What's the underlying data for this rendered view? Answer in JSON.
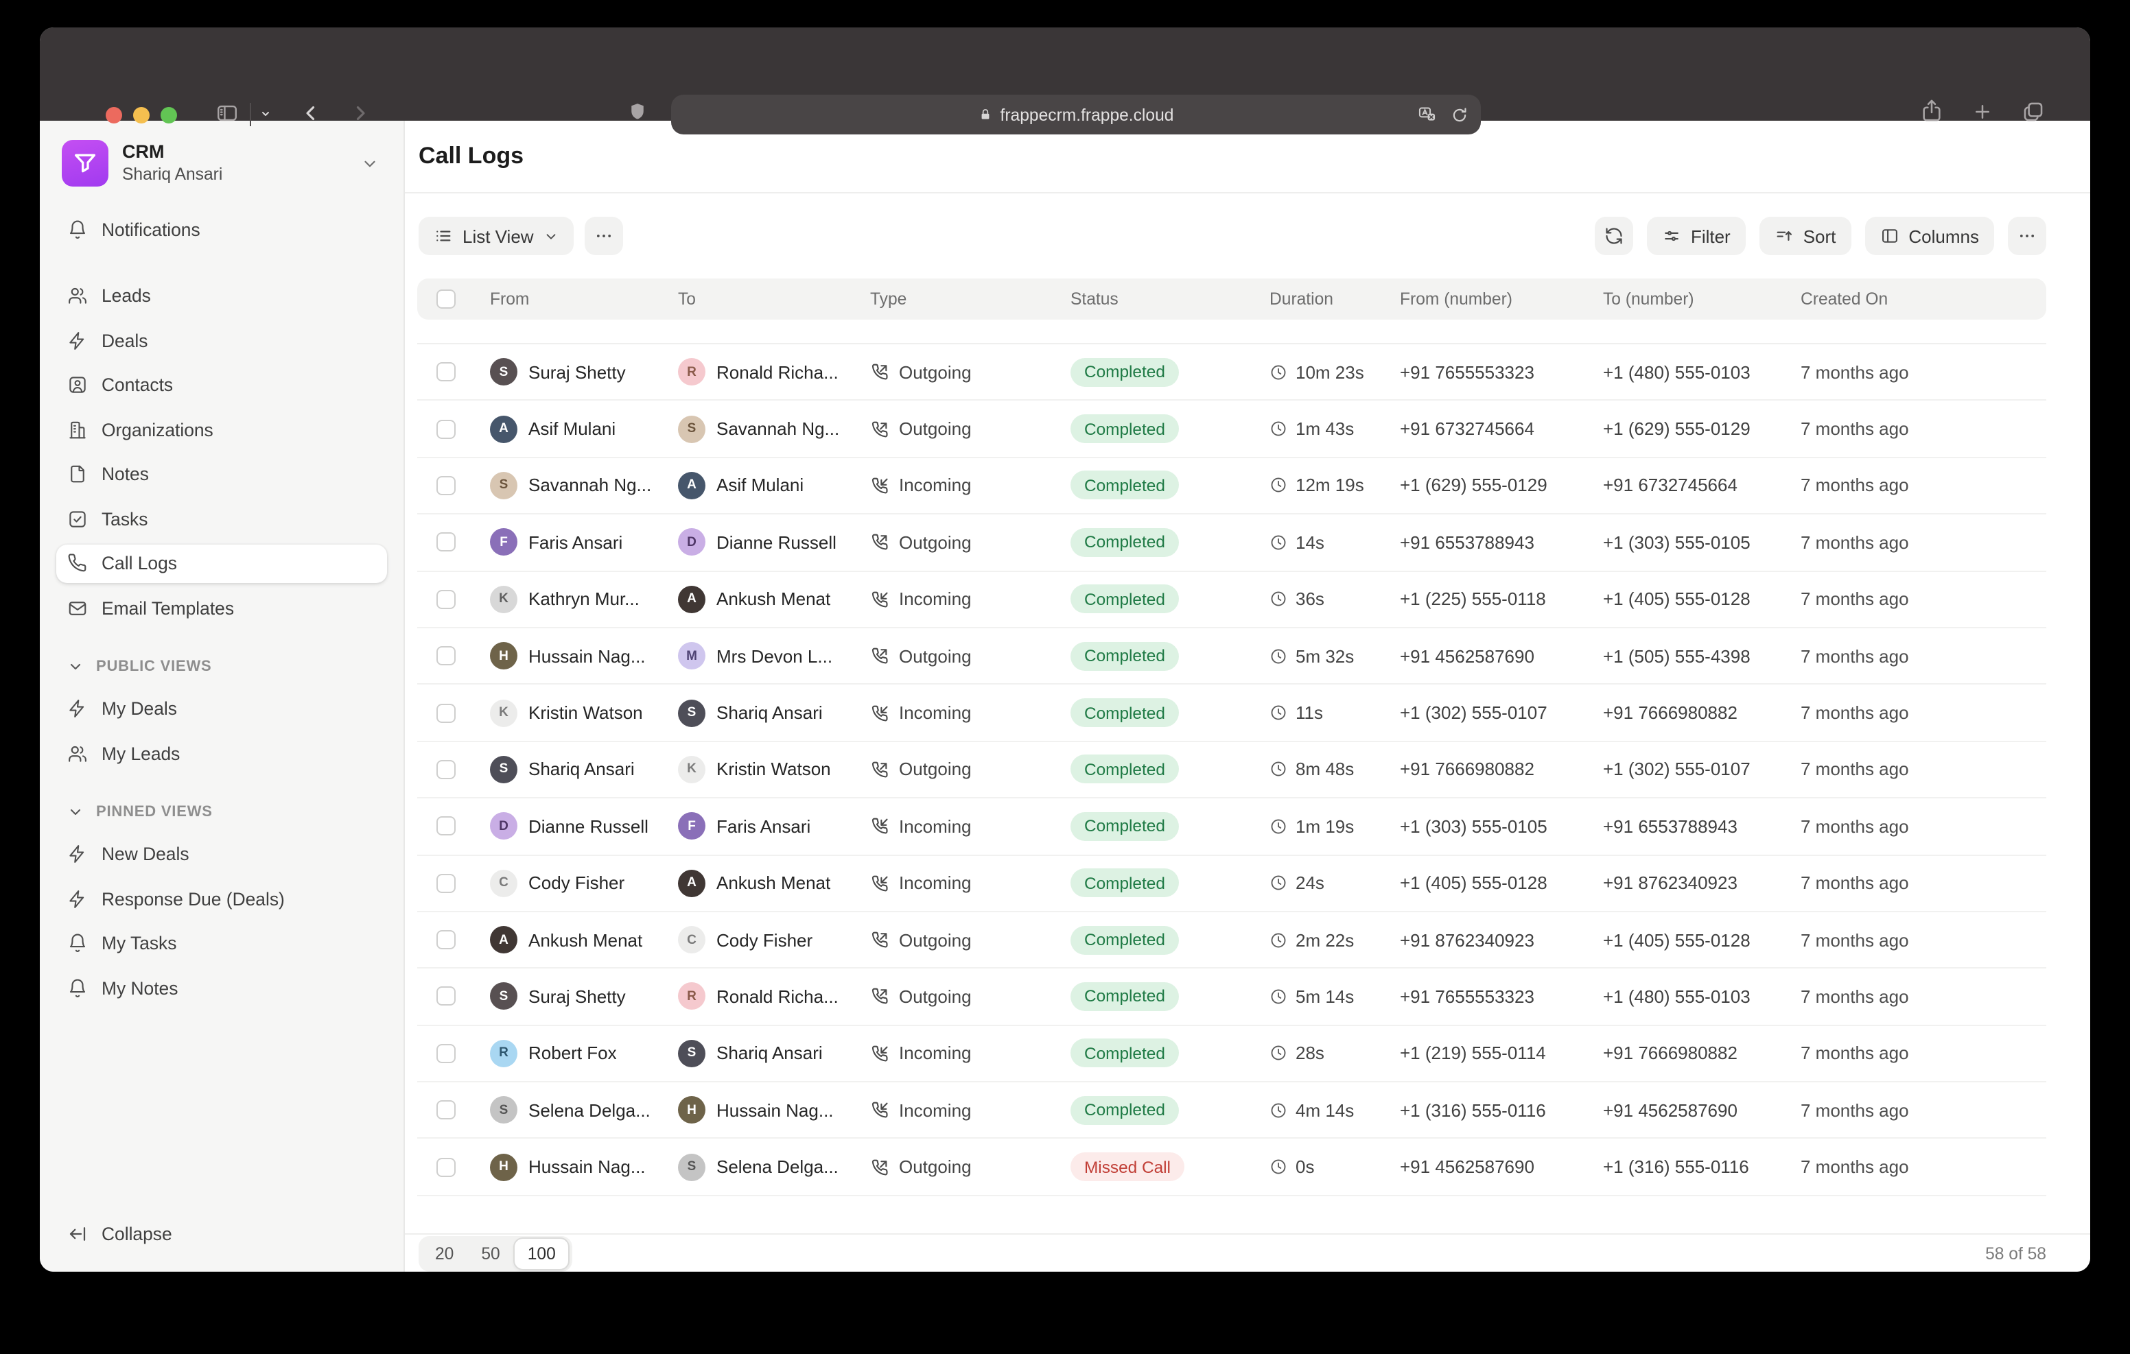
{
  "browser": {
    "url": "frappecrm.frappe.cloud",
    "traffic_lights": {
      "close": "#EC6A5E",
      "minimize": "#F5BF4F",
      "zoom": "#62C554"
    }
  },
  "sidebar": {
    "app": {
      "name": "CRM",
      "user": "Shariq Ansari"
    },
    "nav_top": [
      {
        "label": "Notifications",
        "icon": "bell",
        "active": false
      }
    ],
    "nav_modules": [
      {
        "label": "Leads",
        "icon": "users",
        "active": false
      },
      {
        "label": "Deals",
        "icon": "zap",
        "active": false
      },
      {
        "label": "Contacts",
        "icon": "contact",
        "active": false
      },
      {
        "label": "Organizations",
        "icon": "building",
        "active": false
      },
      {
        "label": "Notes",
        "icon": "file",
        "active": false
      },
      {
        "label": "Tasks",
        "icon": "check-square",
        "active": false
      },
      {
        "label": "Call Logs",
        "icon": "phone",
        "active": true
      },
      {
        "label": "Email Templates",
        "icon": "mail",
        "active": false
      }
    ],
    "sections": [
      {
        "title": "PUBLIC VIEWS",
        "items": [
          {
            "label": "My Deals",
            "icon": "zap"
          },
          {
            "label": "My Leads",
            "icon": "users"
          }
        ]
      },
      {
        "title": "PINNED VIEWS",
        "items": [
          {
            "label": "New Deals",
            "icon": "zap"
          },
          {
            "label": "Response Due (Deals)",
            "icon": "zap"
          },
          {
            "label": "My Tasks",
            "icon": "bell"
          },
          {
            "label": "My Notes",
            "icon": "bell"
          }
        ]
      }
    ],
    "collapse_label": "Collapse"
  },
  "main": {
    "title": "Call Logs",
    "toolbar": {
      "view": "List View",
      "filter": "Filter",
      "sort": "Sort",
      "columns": "Columns"
    },
    "colors": {
      "badge_completed_bg": "#DDF2E3",
      "badge_completed_text": "#1F7A45",
      "badge_missed_bg": "#FCEBEA",
      "badge_missed_text": "#C13E36",
      "logo_purple": "#A13AF0"
    },
    "table": {
      "columns": [
        "From",
        "To",
        "Type",
        "Status",
        "Duration",
        "From (number)",
        "To (number)",
        "Created On"
      ],
      "rows": [
        {
          "from": {
            "name": "Suraj Shetty",
            "avatar": {
              "bg": "#585052",
              "fg": "#FFFFFF",
              "text": "S"
            }
          },
          "to": {
            "name": "Ronald Richa...",
            "avatar": {
              "bg": "#F5C9CE",
              "fg": "#8A5A4A",
              "text": "R"
            }
          },
          "type": "Outgoing",
          "type_icon": "phone-outgoing",
          "status": "Completed",
          "status_kind": "completed",
          "duration": "10m 23s",
          "from_number": "+91 7655553323",
          "to_number": "+1 (480) 555-0103",
          "created": "7 months ago"
        },
        {
          "from": {
            "name": "Asif Mulani",
            "avatar": {
              "bg": "#46566B",
              "fg": "#FFFFFF",
              "text": "A"
            }
          },
          "to": {
            "name": "Savannah Ng...",
            "avatar": {
              "bg": "#D8C6B2",
              "fg": "#6B543C",
              "text": "S"
            }
          },
          "type": "Outgoing",
          "type_icon": "phone-outgoing",
          "status": "Completed",
          "status_kind": "completed",
          "duration": "1m 43s",
          "from_number": "+91 6732745664",
          "to_number": "+1 (629) 555-0129",
          "created": "7 months ago"
        },
        {
          "from": {
            "name": "Savannah Ng...",
            "avatar": {
              "bg": "#D8C6B2",
              "fg": "#6B543C",
              "text": "S"
            }
          },
          "to": {
            "name": "Asif Mulani",
            "avatar": {
              "bg": "#46566B",
              "fg": "#FFFFFF",
              "text": "A"
            }
          },
          "type": "Incoming",
          "type_icon": "phone-incoming",
          "status": "Completed",
          "status_kind": "completed",
          "duration": "12m 19s",
          "from_number": "+1 (629) 555-0129",
          "to_number": "+91 6732745664",
          "created": "7 months ago"
        },
        {
          "from": {
            "name": "Faris Ansari",
            "avatar": {
              "bg": "#8A6FB8",
              "fg": "#FFFFFF",
              "text": "F"
            }
          },
          "to": {
            "name": "Dianne Russell",
            "avatar": {
              "bg": "#C9AEE5",
              "fg": "#4E3566",
              "text": "D"
            }
          },
          "type": "Outgoing",
          "type_icon": "phone-outgoing",
          "status": "Completed",
          "status_kind": "completed",
          "duration": "14s",
          "from_number": "+91 6553788943",
          "to_number": "+1 (303) 555-0105",
          "created": "7 months ago"
        },
        {
          "from": {
            "name": "Kathryn Mur...",
            "avatar": {
              "bg": "#D8D8D8",
              "fg": "#5E5E5E",
              "text": "K"
            }
          },
          "to": {
            "name": "Ankush Menat",
            "avatar": {
              "bg": "#403734",
              "fg": "#FFFFFF",
              "text": "A"
            }
          },
          "type": "Incoming",
          "type_icon": "phone-incoming",
          "status": "Completed",
          "status_kind": "completed",
          "duration": "36s",
          "from_number": "+1 (225) 555-0118",
          "to_number": "+1 (405) 555-0128",
          "created": "7 months ago"
        },
        {
          "from": {
            "name": "Hussain Nag...",
            "avatar": {
              "bg": "#6E6349",
              "fg": "#FFFFFF",
              "text": "H"
            }
          },
          "to": {
            "name": "Mrs Devon L...",
            "avatar": {
              "bg": "#CFC6EE",
              "fg": "#4F4374",
              "text": "M"
            }
          },
          "type": "Outgoing",
          "type_icon": "phone-outgoing",
          "status": "Completed",
          "status_kind": "completed",
          "duration": "5m 32s",
          "from_number": "+91 4562587690",
          "to_number": "+1 (505) 555-4398",
          "created": "7 months ago"
        },
        {
          "from": {
            "name": "Kristin Watson",
            "avatar": {
              "bg": "#ECECEB",
              "fg": "#7A7A7A",
              "text": "K"
            }
          },
          "to": {
            "name": "Shariq Ansari",
            "avatar": {
              "bg": "#4E4E58",
              "fg": "#FFFFFF",
              "text": "S"
            }
          },
          "type": "Incoming",
          "type_icon": "phone-incoming",
          "status": "Completed",
          "status_kind": "completed",
          "duration": "11s",
          "from_number": "+1 (302) 555-0107",
          "to_number": "+91 7666980882",
          "created": "7 months ago"
        },
        {
          "from": {
            "name": "Shariq Ansari",
            "avatar": {
              "bg": "#4E4E58",
              "fg": "#FFFFFF",
              "text": "S"
            }
          },
          "to": {
            "name": "Kristin Watson",
            "avatar": {
              "bg": "#ECECEB",
              "fg": "#7A7A7A",
              "text": "K"
            }
          },
          "type": "Outgoing",
          "type_icon": "phone-outgoing",
          "status": "Completed",
          "status_kind": "completed",
          "duration": "8m 48s",
          "from_number": "+91 7666980882",
          "to_number": "+1 (302) 555-0107",
          "created": "7 months ago"
        },
        {
          "from": {
            "name": "Dianne Russell",
            "avatar": {
              "bg": "#C9AEE5",
              "fg": "#4E3566",
              "text": "D"
            }
          },
          "to": {
            "name": "Faris Ansari",
            "avatar": {
              "bg": "#8A6FB8",
              "fg": "#FFFFFF",
              "text": "F"
            }
          },
          "type": "Incoming",
          "type_icon": "phone-incoming",
          "status": "Completed",
          "status_kind": "completed",
          "duration": "1m 19s",
          "from_number": "+1 (303) 555-0105",
          "to_number": "+91 6553788943",
          "created": "7 months ago"
        },
        {
          "from": {
            "name": "Cody Fisher",
            "avatar": {
              "bg": "#ECECEB",
              "fg": "#7A7A7A",
              "text": "C"
            }
          },
          "to": {
            "name": "Ankush Menat",
            "avatar": {
              "bg": "#403734",
              "fg": "#FFFFFF",
              "text": "A"
            }
          },
          "type": "Incoming",
          "type_icon": "phone-incoming",
          "status": "Completed",
          "status_kind": "completed",
          "duration": "24s",
          "from_number": "+1 (405) 555-0128",
          "to_number": "+91 8762340923",
          "created": "7 months ago"
        },
        {
          "from": {
            "name": "Ankush Menat",
            "avatar": {
              "bg": "#403734",
              "fg": "#FFFFFF",
              "text": "A"
            }
          },
          "to": {
            "name": "Cody Fisher",
            "avatar": {
              "bg": "#ECECEB",
              "fg": "#7A7A7A",
              "text": "C"
            }
          },
          "type": "Outgoing",
          "type_icon": "phone-outgoing",
          "status": "Completed",
          "status_kind": "completed",
          "duration": "2m 22s",
          "from_number": "+91 8762340923",
          "to_number": "+1 (405) 555-0128",
          "created": "7 months ago"
        },
        {
          "from": {
            "name": "Suraj Shetty",
            "avatar": {
              "bg": "#585052",
              "fg": "#FFFFFF",
              "text": "S"
            }
          },
          "to": {
            "name": "Ronald Richa...",
            "avatar": {
              "bg": "#F5C9CE",
              "fg": "#8A5A4A",
              "text": "R"
            }
          },
          "type": "Outgoing",
          "type_icon": "phone-outgoing",
          "status": "Completed",
          "status_kind": "completed",
          "duration": "5m 14s",
          "from_number": "+91 7655553323",
          "to_number": "+1 (480) 555-0103",
          "created": "7 months ago"
        },
        {
          "from": {
            "name": "Robert Fox",
            "avatar": {
              "bg": "#A9D7F2",
              "fg": "#2D566E",
              "text": "R"
            }
          },
          "to": {
            "name": "Shariq Ansari",
            "avatar": {
              "bg": "#4E4E58",
              "fg": "#FFFFFF",
              "text": "S"
            }
          },
          "type": "Incoming",
          "type_icon": "phone-incoming",
          "status": "Completed",
          "status_kind": "completed",
          "duration": "28s",
          "from_number": "+1 (219) 555-0114",
          "to_number": "+91 7666980882",
          "created": "7 months ago"
        },
        {
          "from": {
            "name": "Selena Delga...",
            "avatar": {
              "bg": "#C4C4C4",
              "fg": "#545454",
              "text": "S"
            }
          },
          "to": {
            "name": "Hussain Nag...",
            "avatar": {
              "bg": "#6E6349",
              "fg": "#FFFFFF",
              "text": "H"
            }
          },
          "type": "Incoming",
          "type_icon": "phone-incoming",
          "status": "Completed",
          "status_kind": "completed",
          "duration": "4m 14s",
          "from_number": "+1 (316) 555-0116",
          "to_number": "+91 4562587690",
          "created": "7 months ago"
        },
        {
          "from": {
            "name": "Hussain Nag...",
            "avatar": {
              "bg": "#6E6349",
              "fg": "#FFFFFF",
              "text": "H"
            }
          },
          "to": {
            "name": "Selena Delga...",
            "avatar": {
              "bg": "#C4C4C4",
              "fg": "#545454",
              "text": "S"
            }
          },
          "type": "Outgoing",
          "type_icon": "phone-outgoing",
          "status": "Missed Call",
          "status_kind": "missed",
          "duration": "0s",
          "from_number": "+91 4562587690",
          "to_number": "+1 (316) 555-0116",
          "created": "7 months ago"
        }
      ]
    },
    "footer": {
      "page_sizes": [
        "20",
        "50",
        "100"
      ],
      "active_page_size": "100",
      "count": "58 of 58"
    }
  }
}
